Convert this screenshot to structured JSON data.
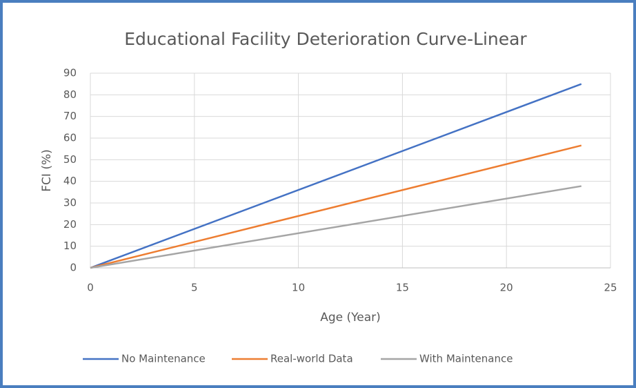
{
  "chart_data": {
    "type": "line",
    "title": "Educational Facility Deterioration Curve-Linear",
    "x_label": "Age (Year)",
    "y_label": "FCI (%)",
    "x": [
      0,
      23.6
    ],
    "series": [
      {
        "name": "No Maintenance",
        "color": "#4472c4",
        "values": [
          0,
          85
        ]
      },
      {
        "name": "Real-world Data",
        "color": "#ed7d31",
        "values": [
          0,
          56.6
        ]
      },
      {
        "name": "With Maintenance",
        "color": "#a5a5a5",
        "values": [
          0,
          37.8
        ]
      }
    ],
    "xlim": [
      0,
      25
    ],
    "xticks": [
      0,
      5,
      10,
      15,
      20,
      25
    ],
    "ylim": [
      0,
      90
    ],
    "yticks": [
      0,
      10,
      20,
      30,
      40,
      50,
      60,
      70,
      80,
      90
    ],
    "grid": true,
    "legend": "bottom"
  }
}
